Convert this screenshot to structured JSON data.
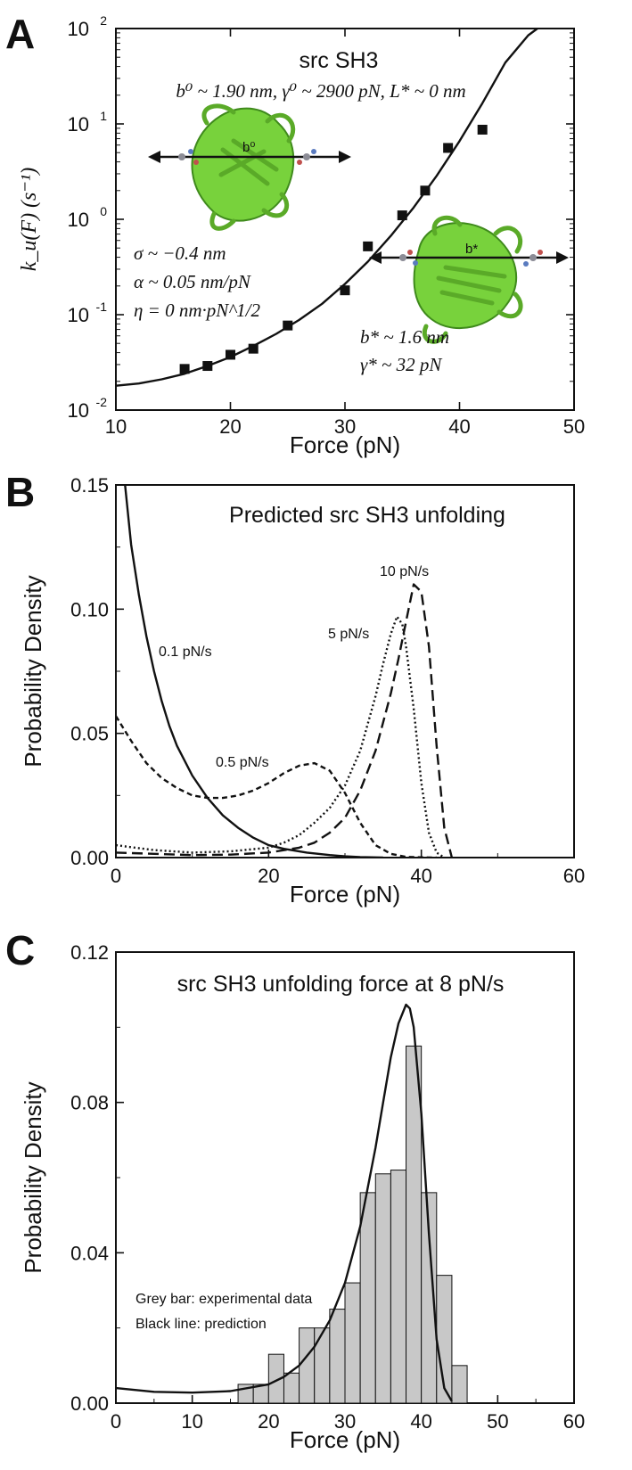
{
  "chart_data": [
    {
      "panel": "A",
      "type": "scatter",
      "title": "src SH3",
      "parameters_text": "b⁰ ~ 1.90 nm, γ⁰ ~ 2900 pN, L* ~ 0 nm",
      "xlabel": "Force (pN)",
      "ylabel": "k_u(F) (s⁻¹)",
      "xlim": [
        10,
        50
      ],
      "ylim": [
        0.01,
        100
      ],
      "yscale": "log",
      "xticks": [
        "10",
        "20",
        "30",
        "40",
        "50"
      ],
      "yticks": [
        {
          "base": "10",
          "exp": "-2"
        },
        {
          "base": "10",
          "exp": "-1"
        },
        {
          "base": "10",
          "exp": "0"
        },
        {
          "base": "10",
          "exp": "1"
        },
        {
          "base": "10",
          "exp": "2"
        }
      ],
      "points": {
        "x": [
          16,
          18,
          20,
          22,
          25,
          30,
          32,
          35,
          37,
          39,
          42
        ],
        "y": [
          0.027,
          0.029,
          0.038,
          0.044,
          0.077,
          0.18,
          0.52,
          1.1,
          2.0,
          5.6,
          8.7
        ]
      },
      "fit_curve": {
        "x": [
          10,
          12,
          14,
          16,
          18,
          20,
          22,
          24,
          26,
          28,
          30,
          32,
          34,
          36,
          38,
          40,
          42,
          44,
          46,
          46.8
        ],
        "y": [
          0.018,
          0.019,
          0.021,
          0.024,
          0.029,
          0.036,
          0.047,
          0.063,
          0.088,
          0.13,
          0.21,
          0.36,
          0.67,
          1.33,
          2.85,
          6.6,
          16.5,
          44,
          85,
          100
        ]
      },
      "annotations": [
        "σ ~ −0.4 nm",
        "α ~ 0.05 nm/pN",
        "η = 0 nm·pN^1/2",
        "b* ~ 1.6 nm",
        "γ* ~ 32 pN"
      ],
      "structure_labels": [
        "b⁰",
        "b*"
      ]
    },
    {
      "panel": "B",
      "type": "line",
      "title": "Predicted src SH3 unfolding",
      "xlabel": "Force (pN)",
      "ylabel": "Probability Density",
      "xlim": [
        0,
        60
      ],
      "ylim": [
        0,
        0.15
      ],
      "xticks": [
        "0",
        "20",
        "40",
        "60"
      ],
      "yticks": [
        "0.00",
        "0.05",
        "0.10",
        "0.15"
      ],
      "series": [
        {
          "name": "0.1 pN/s",
          "style": "solid",
          "x": [
            1.2,
            2,
            3,
            4,
            5,
            6,
            7,
            8,
            10,
            12,
            14,
            16,
            18,
            20,
            22,
            25,
            28,
            30,
            32,
            35
          ],
          "y": [
            0.15,
            0.126,
            0.106,
            0.089,
            0.075,
            0.063,
            0.053,
            0.045,
            0.033,
            0.024,
            0.017,
            0.012,
            0.008,
            0.005,
            0.0035,
            0.002,
            0.001,
            0.0005,
            0.0002,
            0
          ]
        },
        {
          "name": "0.5 pN/s",
          "style": "short-dash",
          "x": [
            0,
            2,
            4,
            6,
            8,
            10,
            12,
            14,
            16,
            18,
            20,
            22,
            24,
            26,
            28,
            30,
            32,
            34,
            36,
            38,
            40,
            42
          ],
          "y": [
            0.057,
            0.047,
            0.038,
            0.032,
            0.028,
            0.025,
            0.024,
            0.024,
            0.025,
            0.027,
            0.03,
            0.034,
            0.037,
            0.038,
            0.035,
            0.026,
            0.014,
            0.005,
            0.0015,
            0.0003,
            0.0001,
            0
          ]
        },
        {
          "name": "5 pN/s",
          "style": "dotted",
          "x": [
            0,
            5,
            10,
            15,
            20,
            22,
            24,
            26,
            28,
            30,
            32,
            34,
            35,
            36,
            36.8,
            37.5,
            38,
            39,
            40,
            41,
            42,
            43
          ],
          "y": [
            0.005,
            0.003,
            0.002,
            0.0025,
            0.004,
            0.006,
            0.009,
            0.014,
            0.02,
            0.029,
            0.043,
            0.065,
            0.078,
            0.09,
            0.097,
            0.094,
            0.085,
            0.06,
            0.03,
            0.01,
            0.002,
            0
          ]
        },
        {
          "name": "10 pN/s",
          "style": "long-dash",
          "x": [
            0,
            5,
            10,
            15,
            20,
            24,
            26,
            28,
            30,
            32,
            34,
            36,
            37,
            38,
            39,
            40,
            41,
            42,
            43,
            44
          ],
          "y": [
            0.002,
            0.0015,
            0.001,
            0.0012,
            0.002,
            0.004,
            0.006,
            0.01,
            0.016,
            0.027,
            0.043,
            0.066,
            0.08,
            0.095,
            0.11,
            0.107,
            0.085,
            0.045,
            0.012,
            0
          ]
        }
      ]
    },
    {
      "panel": "C",
      "type": "bar",
      "title": "src SH3 unfolding force at 8 pN/s",
      "xlabel": "Force (pN)",
      "ylabel": "Probability Density",
      "xlim": [
        0,
        60
      ],
      "ylim": [
        0,
        0.12
      ],
      "xticks": [
        "0",
        "10",
        "20",
        "30",
        "40",
        "50",
        "60"
      ],
      "yticks": [
        "0.00",
        "0.04",
        "0.08",
        "0.12"
      ],
      "bar_width": 2,
      "histogram": {
        "x": [
          17,
          19,
          21,
          23,
          25,
          27,
          29,
          31,
          33,
          35,
          37,
          39,
          41,
          43,
          45
        ],
        "y": [
          0.005,
          0.005,
          0.013,
          0.008,
          0.02,
          0.02,
          0.025,
          0.032,
          0.056,
          0.061,
          0.062,
          0.095,
          0.056,
          0.034,
          0.01
        ]
      },
      "prediction_curve": {
        "x": [
          0,
          5,
          10,
          15,
          20,
          22,
          24,
          26,
          28,
          30,
          32,
          34,
          35,
          36,
          37,
          38,
          38.5,
          39,
          40,
          41,
          42,
          43,
          44
        ],
        "y": [
          0.004,
          0.003,
          0.0028,
          0.0032,
          0.005,
          0.007,
          0.01,
          0.015,
          0.022,
          0.032,
          0.047,
          0.068,
          0.08,
          0.092,
          0.101,
          0.106,
          0.105,
          0.1,
          0.077,
          0.045,
          0.017,
          0.004,
          0.0005
        ]
      },
      "legend_text": [
        "Grey bar: experimental data",
        "Black line: prediction"
      ]
    }
  ],
  "colors": {
    "ink": "#111111",
    "bar_fill": "#c8c8c8",
    "protein_green": "#78d23c",
    "atom_grey": "#8c8c96",
    "atom_red": "#c0504d",
    "atom_blue": "#5a7bbf"
  }
}
